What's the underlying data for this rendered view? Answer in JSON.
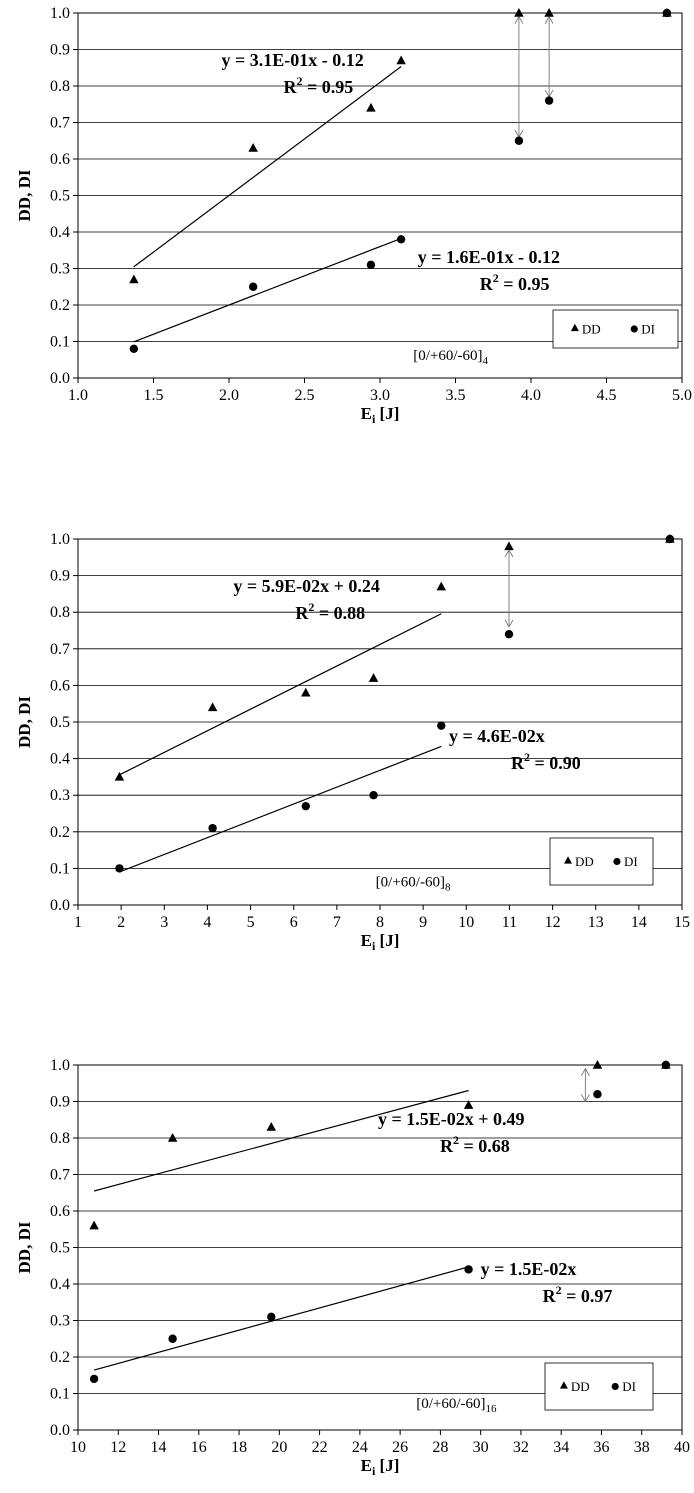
{
  "chart_data": [
    {
      "type": "scatter",
      "xlabel": "E",
      "xlabel_sub": "i",
      "xlabel_unit": " [J]",
      "ylabel": "DD, DI",
      "xlim": [
        1.0,
        5.0
      ],
      "ylim": [
        0.0,
        1.0
      ],
      "xticks": [
        "1.0",
        "1.5",
        "2.0",
        "2.5",
        "3.0",
        "3.5",
        "4.0",
        "4.5",
        "5.0"
      ],
      "yticks": [
        "0.0",
        "0.1",
        "0.2",
        "0.3",
        "0.4",
        "0.5",
        "0.6",
        "0.7",
        "0.8",
        "0.9",
        "1.0"
      ],
      "grid": "horizontal",
      "series": [
        {
          "name": "DD",
          "marker": "triangle",
          "x": [
            1.37,
            2.16,
            2.94,
            3.14,
            3.92,
            4.12,
            4.9
          ],
          "y": [
            0.27,
            0.63,
            0.74,
            0.87,
            1.0,
            1.0,
            1.0
          ]
        },
        {
          "name": "DI",
          "marker": "circle",
          "x": [
            1.37,
            2.16,
            2.94,
            3.14,
            3.92,
            4.12,
            4.9
          ],
          "y": [
            0.08,
            0.25,
            0.31,
            0.38,
            0.65,
            0.76,
            1.0
          ]
        }
      ],
      "fits": [
        {
          "x0": 1.37,
          "x1": 3.14,
          "slope": 0.31,
          "intercept": -0.12,
          "eq": "y = 3.1E-01x - 0.12",
          "r2_value": " = 0.95",
          "label_x": 1.95,
          "label_y": 0.855
        },
        {
          "x0": 1.37,
          "x1": 3.14,
          "slope": 0.16,
          "intercept": -0.12,
          "eq": "y = 1.6E-01x - 0.12",
          "r2_value": " = 0.95",
          "label_x": 3.25,
          "label_y": 0.315
        }
      ],
      "arrows": [
        {
          "x": 3.92,
          "y0": 0.99,
          "y1": 0.66
        },
        {
          "x": 4.12,
          "y0": 0.99,
          "y1": 0.77
        }
      ],
      "legend_position": "bottom-right",
      "layup_text": "[0/+60/-60]",
      "layup_sub": "4",
      "layup_pos": [
        3.22,
        0.05
      ]
    },
    {
      "type": "scatter",
      "xlabel": "E",
      "xlabel_sub": "i",
      "xlabel_unit": " [J]",
      "ylabel": "DD, DI",
      "xlim": [
        1,
        15
      ],
      "ylim": [
        0.0,
        1.0
      ],
      "xticks": [
        "1",
        "2",
        "3",
        "4",
        "5",
        "6",
        "7",
        "8",
        "9",
        "10",
        "11",
        "12",
        "13",
        "14",
        "15"
      ],
      "yticks": [
        "0.0",
        "0.1",
        "0.2",
        "0.3",
        "0.4",
        "0.5",
        "0.6",
        "0.7",
        "0.8",
        "0.9",
        "1.0"
      ],
      "grid": "horizontal",
      "series": [
        {
          "name": "DD",
          "marker": "triangle",
          "x": [
            1.96,
            4.12,
            6.28,
            7.85,
            9.42,
            10.99,
            14.72
          ],
          "y": [
            0.35,
            0.54,
            0.58,
            0.62,
            0.87,
            0.98,
            1.0
          ]
        },
        {
          "name": "DI",
          "marker": "circle",
          "x": [
            1.96,
            4.12,
            6.28,
            7.85,
            9.42,
            10.99,
            14.72
          ],
          "y": [
            0.1,
            0.21,
            0.27,
            0.3,
            0.49,
            0.74,
            1.0
          ]
        }
      ],
      "fits": [
        {
          "x0": 1.96,
          "x1": 9.42,
          "slope": 0.059,
          "intercept": 0.24,
          "eq": "y = 5.9E-02x + 0.24",
          "r2_value": " = 0.88",
          "label_x": 4.6,
          "label_y": 0.855
        },
        {
          "x0": 1.96,
          "x1": 9.42,
          "slope": 0.046,
          "intercept": 0.0,
          "eq": "y = 4.6E-02x",
          "r2_value": " = 0.90",
          "label_x": 9.6,
          "label_y": 0.445
        }
      ],
      "arrows": [
        {
          "x": 10.99,
          "y0": 0.97,
          "y1": 0.76
        }
      ],
      "legend_position": "bottom-right",
      "layup_text": "[0/+60/-60]",
      "layup_sub": "8",
      "layup_pos": [
        7.9,
        0.05
      ]
    },
    {
      "type": "scatter",
      "xlabel": "E",
      "xlabel_sub": "i",
      "xlabel_unit": " [J]",
      "ylabel": "DD, DI",
      "xlim": [
        10,
        40
      ],
      "ylim": [
        0.0,
        1.0
      ],
      "xticks": [
        "10",
        "12",
        "14",
        "16",
        "18",
        "20",
        "22",
        "24",
        "26",
        "28",
        "30",
        "32",
        "34",
        "36",
        "38",
        "40"
      ],
      "yticks": [
        "0.0",
        "0.1",
        "0.2",
        "0.3",
        "0.4",
        "0.5",
        "0.6",
        "0.7",
        "0.8",
        "0.9",
        "1.0"
      ],
      "grid": "horizontal",
      "series": [
        {
          "name": "DD",
          "marker": "triangle",
          "x": [
            10.8,
            14.7,
            19.6,
            29.4,
            35.8,
            39.2
          ],
          "y": [
            0.56,
            0.8,
            0.83,
            0.89,
            1.0,
            1.0
          ]
        },
        {
          "name": "DI",
          "marker": "circle",
          "x": [
            10.8,
            14.7,
            19.6,
            29.4,
            35.8,
            39.2
          ],
          "y": [
            0.14,
            0.25,
            0.31,
            0.44,
            0.92,
            1.0
          ]
        }
      ],
      "fits": [
        {
          "x0": 10.8,
          "x1": 29.4,
          "slope": 0.0148,
          "intercept": 0.495,
          "eq": "y = 1.5E-02x + 0.49",
          "r2_value": " = 0.68",
          "label_x": 24.9,
          "label_y": 0.835
        },
        {
          "x0": 10.8,
          "x1": 29.4,
          "slope": 0.0152,
          "intercept": 0.0,
          "eq": "y = 1.5E-02x",
          "r2_value": " = 0.97",
          "label_x": 30.0,
          "label_y": 0.425
        }
      ],
      "arrows": [
        {
          "x": 35.2,
          "y0": 0.99,
          "y1": 0.9
        }
      ],
      "legend_position": "bottom-right",
      "layup_text": "[0/+60/-60]",
      "layup_sub": "16",
      "layup_pos": [
        26.8,
        0.06
      ]
    }
  ]
}
